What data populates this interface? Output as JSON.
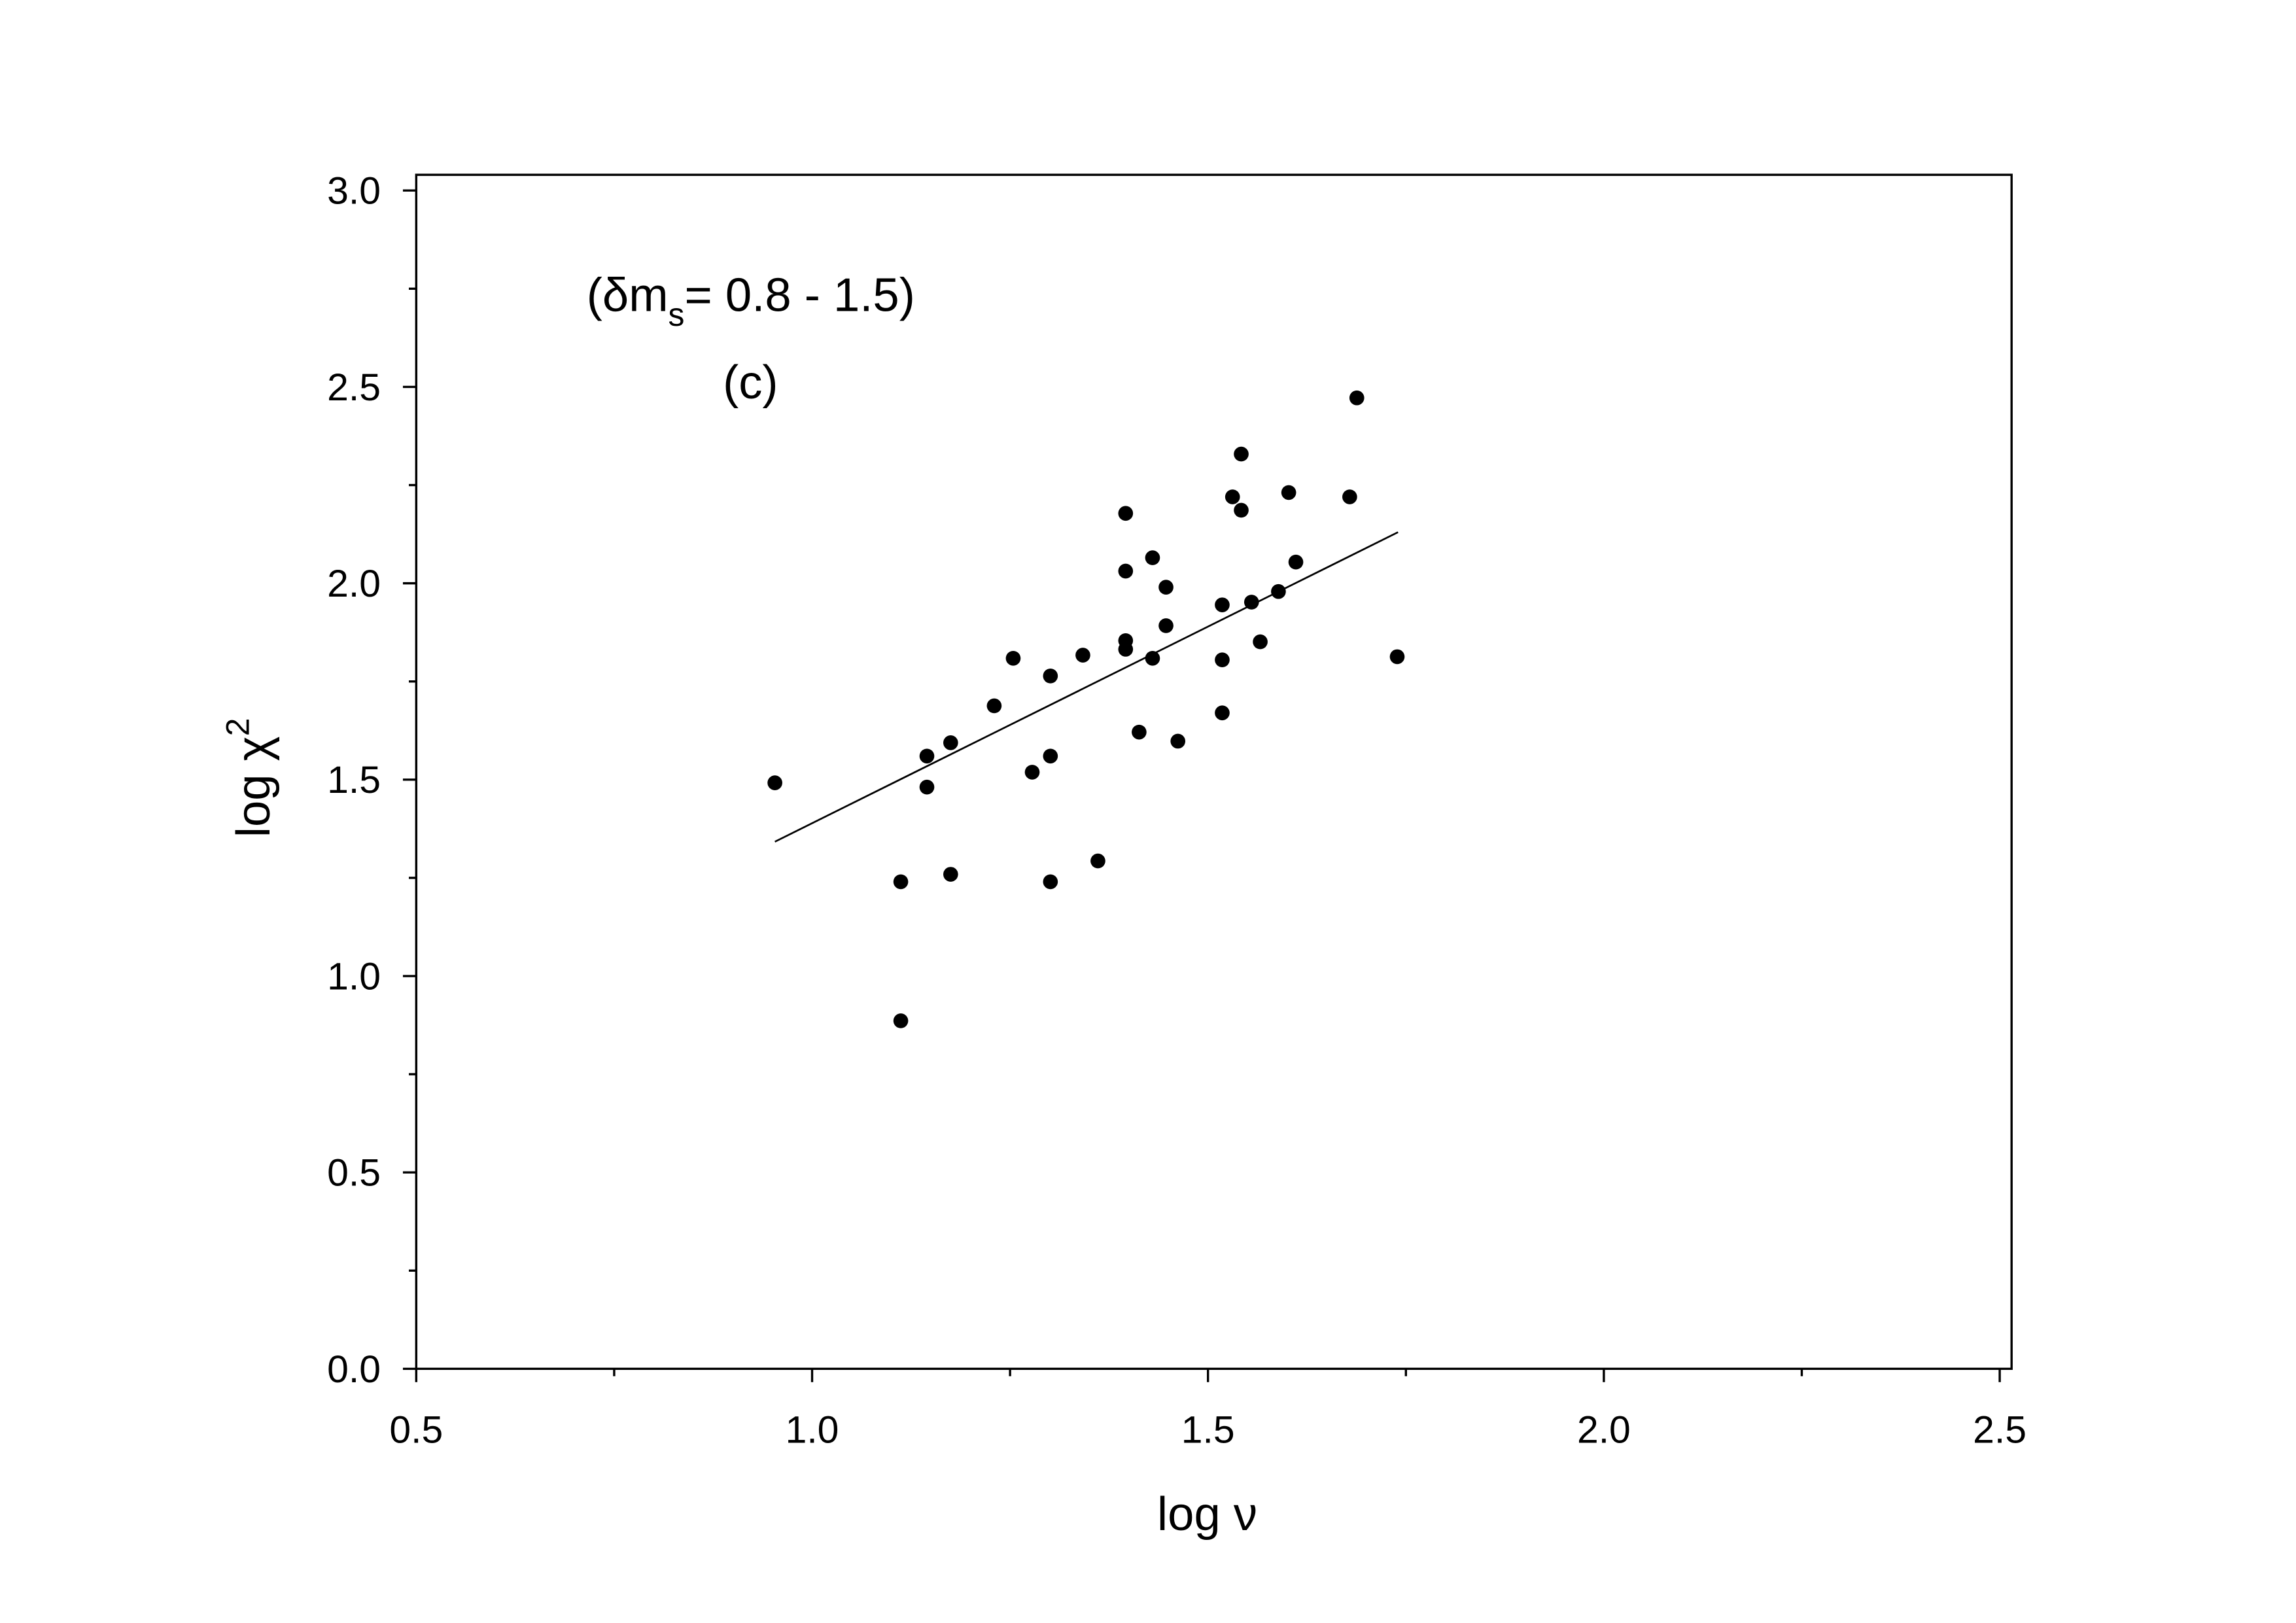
{
  "chart_data": {
    "type": "scatter",
    "xlabel": "log ν",
    "ylabel": "log χ",
    "ylabel_superscript": "2",
    "annotation": {
      "prefix": "(δm",
      "subscript": "s",
      "suffix": "= 0.8 - 1.5)"
    },
    "panel_label": "(c)",
    "color": "#000000",
    "xlim": [
      0.5,
      2.515
    ],
    "ylim": [
      0,
      3.04
    ],
    "xticks": [
      0.5,
      {
        "value": 1,
        "label": "1.0"
      },
      1.5,
      {
        "value": 2,
        "label": "2.0"
      },
      2.5
    ],
    "xminor_ticks": [
      0.75,
      1.25,
      1.75,
      2.25
    ],
    "yticks": [
      {
        "value": 0,
        "label": "0.0"
      },
      0.5,
      {
        "value": 1,
        "label": "1.0"
      },
      1.5,
      {
        "value": 2,
        "label": "2.0"
      },
      2.5,
      {
        "value": 3,
        "label": "3.0"
      }
    ],
    "yminor_ticks": [
      0.25,
      0.75,
      1.25,
      1.75,
      2.25,
      2.75
    ],
    "x": [
      0.953,
      1.112,
      1.112,
      1.145,
      1.145,
      1.175,
      1.175,
      1.23,
      1.254,
      1.278,
      1.301,
      1.301,
      1.301,
      1.342,
      1.361,
      1.396,
      1.396,
      1.396,
      1.396,
      1.413,
      1.43,
      1.43,
      1.447,
      1.447,
      1.462,
      1.518,
      1.518,
      1.518,
      1.531,
      1.542,
      1.542,
      1.555,
      1.566,
      1.589,
      1.602,
      1.611,
      1.679,
      1.688,
      1.739
    ],
    "values": [
      1.492,
      1.24,
      0.886,
      1.56,
      1.481,
      1.594,
      1.259,
      1.688,
      1.809,
      1.519,
      1.764,
      1.56,
      1.24,
      1.817,
      1.293,
      2.178,
      2.031,
      1.854,
      1.832,
      1.621,
      2.065,
      1.809,
      1.99,
      1.892,
      1.598,
      1.945,
      1.805,
      1.67,
      2.22,
      2.329,
      2.186,
      1.952,
      1.851,
      1.979,
      2.231,
      2.054,
      2.22,
      2.472,
      1.813
    ],
    "fit": {
      "x": [
        0.953,
        1.74
      ],
      "y": [
        1.342,
        2.13
      ]
    }
  }
}
